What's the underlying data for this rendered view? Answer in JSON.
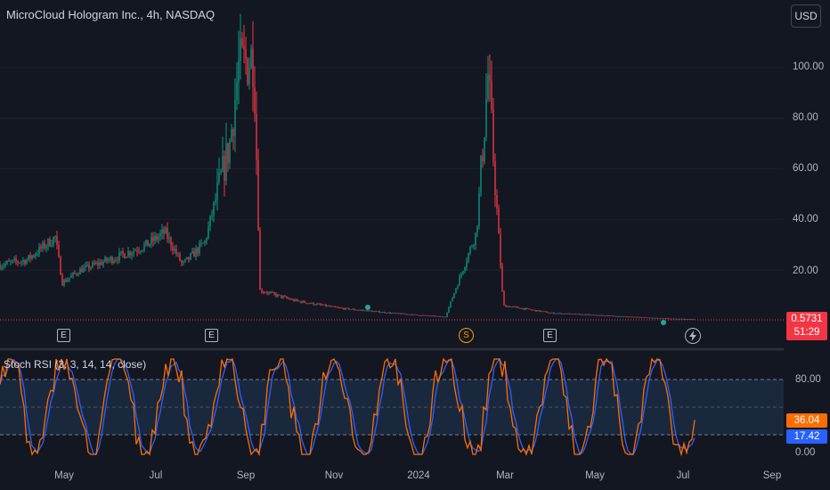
{
  "header": {
    "title": "MicroCloud Hologram Inc., 4h, NASDAQ"
  },
  "currency_button": "USD",
  "price_axis": {
    "ticks": [
      "100.00",
      "80.00",
      "60.00",
      "40.00",
      "20.00"
    ]
  },
  "last_price": {
    "value": "0.5731",
    "countdown": "51:29"
  },
  "events": {
    "earnings_label": "E",
    "split_label": "S",
    "upcoming_icon": "lightning-icon"
  },
  "indicator": {
    "label": "Stoch RSI (3, 3, 14, 14, close)",
    "ticks": [
      "80.00",
      "0.00"
    ],
    "k_value": "36.04",
    "d_value": "17.42"
  },
  "time_axis": [
    "May",
    "Jul",
    "Sep",
    "Nov",
    "2024",
    "Mar",
    "May",
    "Jul",
    "Sep"
  ],
  "colors": {
    "background": "#131722",
    "up": "#089981",
    "down": "#f23645",
    "k_line": "#ff6d00",
    "d_line": "#2962ff",
    "band_fill": "#1c2a40"
  },
  "chart_data": {
    "type": "candlestick",
    "symbol": "MicroCloud Hologram Inc.",
    "interval": "4h",
    "exchange": "NASDAQ",
    "ylim": [
      0,
      112
    ],
    "x_labels": [
      "May",
      "Jul",
      "Sep",
      "Nov",
      "2024",
      "Mar",
      "May",
      "Jul",
      "Sep"
    ],
    "approx_close_path": [
      {
        "t": "Apr start",
        "close": 22
      },
      {
        "t": "mid Apr",
        "close": 24
      },
      {
        "t": "late Apr spike",
        "close": 33
      },
      {
        "t": "early May",
        "close": 15
      },
      {
        "t": "mid May",
        "close": 20
      },
      {
        "t": "Jun",
        "close": 25
      },
      {
        "t": "early Jul",
        "close": 30
      },
      {
        "t": "mid Jul",
        "close": 35
      },
      {
        "t": "late Jul",
        "close": 22
      },
      {
        "t": "early Aug",
        "close": 31
      },
      {
        "t": "mid Aug",
        "close": 70
      },
      {
        "t": "late Aug",
        "close": 100
      },
      {
        "t": "early Sep",
        "close": 105
      },
      {
        "t": "Sep crash",
        "close": 12
      },
      {
        "t": "Oct",
        "close": 8
      },
      {
        "t": "Nov",
        "close": 5
      },
      {
        "t": "Dec",
        "close": 3
      },
      {
        "t": "Jan",
        "close": 1.5
      },
      {
        "t": "mid Feb spike",
        "close": 35
      },
      {
        "t": "Feb peak",
        "close": 97
      },
      {
        "t": "Mar",
        "close": 6
      },
      {
        "t": "Apr",
        "close": 3
      },
      {
        "t": "May",
        "close": 2
      },
      {
        "t": "Jun",
        "close": 1
      },
      {
        "t": "Jul",
        "close": 0.5731
      }
    ],
    "last": 0.5731,
    "indicator": {
      "name": "Stoch RSI",
      "params": "3, 3, 14, 14, close",
      "levels": [
        80,
        50,
        20
      ],
      "k_last": 36.04,
      "d_last": 17.42
    }
  }
}
